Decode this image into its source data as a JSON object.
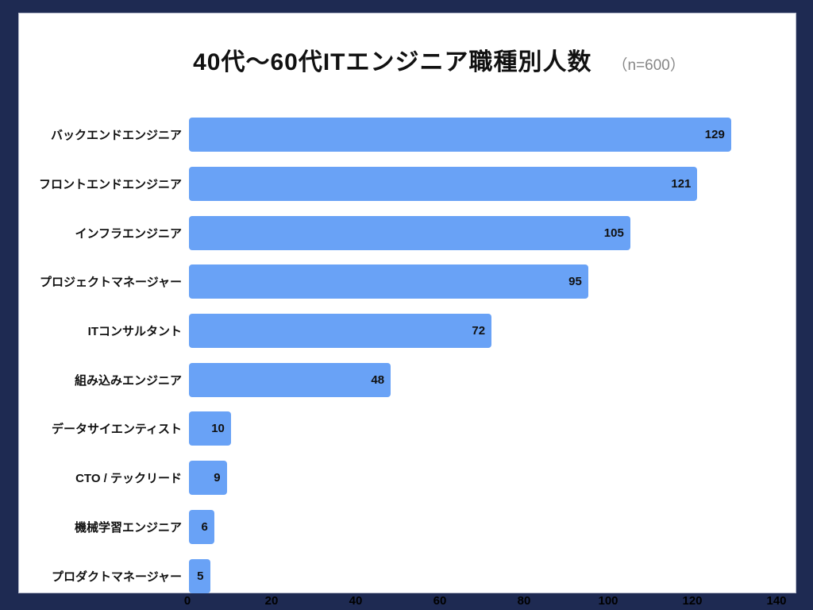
{
  "page": {
    "background_color": "#1e2a52",
    "panel_color": "#ffffff"
  },
  "header": {
    "title": "40代〜60代ITエンジニア職種別人数",
    "sample_size": "（n=600）"
  },
  "chart_data": {
    "type": "bar",
    "orientation": "horizontal",
    "title": "40代〜60代ITエンジニア職種別人数",
    "subtitle": "（n=600）",
    "categories": [
      "バックエンドエンジニア",
      "フロントエンドエンジニア",
      "インフラエンジニア",
      "プロジェクトマネージャー",
      "ITコンサルタント",
      "組み込みエンジニア",
      "データサイエンティスト",
      "CTO / テックリード",
      "機械学習エンジニア",
      "プロダクトマネージャー"
    ],
    "values": [
      129,
      121,
      105,
      95,
      72,
      48,
      10,
      9,
      6,
      5
    ],
    "x_ticks": [
      "0",
      "20",
      "40",
      "60",
      "80",
      "100",
      "120",
      "140"
    ],
    "xlim": [
      0,
      140
    ],
    "bar_color": "#69a2f6",
    "value_label_color": "#111111",
    "grid": false,
    "legend": false,
    "value_labels_position": "inside-end"
  }
}
